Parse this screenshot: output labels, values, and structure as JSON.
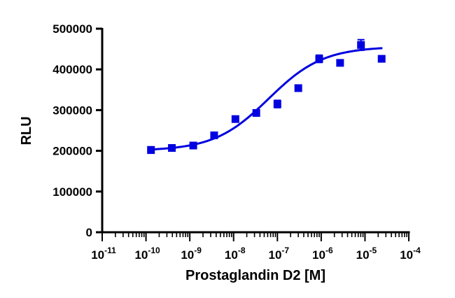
{
  "chart_data": {
    "type": "scatter",
    "xlabel": "Prostaglandin D2 [M]",
    "ylabel": "RLU",
    "xscale": "log",
    "xlim": [
      1e-11,
      0.0001
    ],
    "ylim": [
      0,
      500000
    ],
    "x_ticks": [
      {
        "base": "10",
        "exp": "-11"
      },
      {
        "base": "10",
        "exp": "-10"
      },
      {
        "base": "10",
        "exp": "-9"
      },
      {
        "base": "10",
        "exp": "-8"
      },
      {
        "base": "10",
        "exp": "-7"
      },
      {
        "base": "10",
        "exp": "-6"
      },
      {
        "base": "10",
        "exp": "-5"
      },
      {
        "base": "10",
        "exp": "-4"
      }
    ],
    "y_ticks": [
      "0",
      "100000",
      "200000",
      "300000",
      "400000",
      "500000"
    ],
    "grid": false,
    "legend": "none",
    "series": [
      {
        "marker": "square",
        "color": "#0000e0",
        "points": [
          {
            "x": 1.3e-10,
            "y": 202000,
            "err": 8000
          },
          {
            "x": 3.9e-10,
            "y": 207000,
            "err": 6000
          },
          {
            "x": 1.2e-09,
            "y": 213000,
            "err": 6000
          },
          {
            "x": 3.6e-09,
            "y": 238000,
            "err": 3000
          },
          {
            "x": 1.1e-08,
            "y": 278000,
            "err": 3000
          },
          {
            "x": 3.3e-08,
            "y": 293000,
            "err": 3000
          },
          {
            "x": 1e-07,
            "y": 315000,
            "err": 9000
          },
          {
            "x": 3e-07,
            "y": 354000,
            "err": 3000
          },
          {
            "x": 9e-07,
            "y": 426000,
            "err": 9000
          },
          {
            "x": 2.7e-06,
            "y": 416000,
            "err": 3000
          },
          {
            "x": 8.1e-06,
            "y": 460000,
            "err": 13000
          },
          {
            "x": 2.4e-05,
            "y": 426000,
            "err": 3000
          }
        ]
      }
    ],
    "fit": {
      "type": "sigmoid",
      "color": "#0000e0",
      "bottom": 200000,
      "top": 456000,
      "log_ec50": -7.2,
      "hill_slope": 0.7,
      "x_range": [
        1.2e-10,
        2.5e-05
      ]
    }
  }
}
